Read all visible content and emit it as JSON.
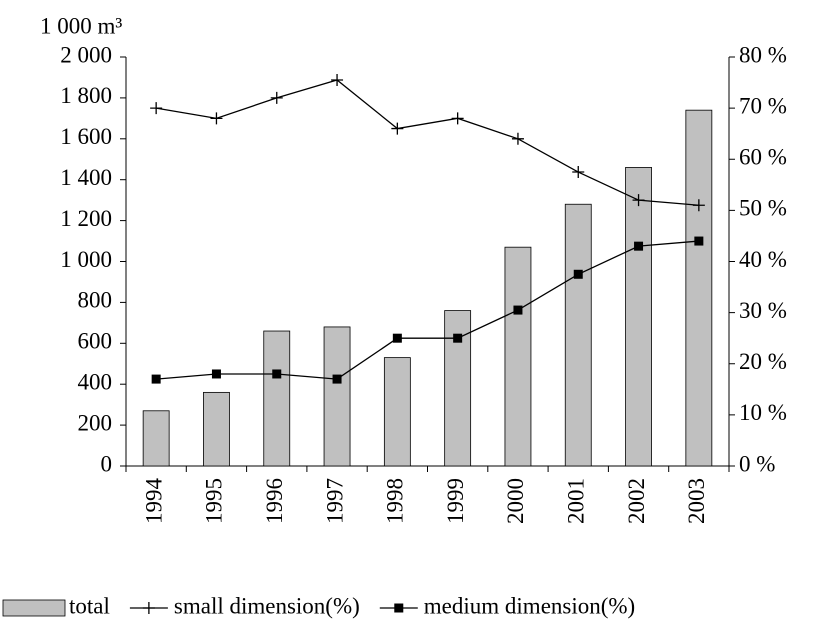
{
  "chart_data": {
    "type": "bar_line",
    "y_label": "1 000 m³",
    "categories": [
      "1994",
      "1995",
      "1996",
      "1997",
      "1998",
      "1999",
      "2000",
      "2001",
      "2002",
      "2003"
    ],
    "series": [
      {
        "name": "total",
        "type": "bar",
        "color": "#c0c0c0",
        "values": [
          270,
          360,
          660,
          680,
          530,
          760,
          1070,
          1280,
          1460,
          1740
        ]
      },
      {
        "name": "small dimension(%)",
        "type": "line",
        "marker": "plus",
        "color": "#000000",
        "axis": "y2",
        "values": [
          70,
          68,
          72,
          75.5,
          66,
          68,
          64,
          57.5,
          52,
          51
        ]
      },
      {
        "name": "medium dimension(%)",
        "type": "line",
        "marker": "square",
        "color": "#000000",
        "axis": "y2",
        "values": [
          17,
          18,
          18,
          17,
          25,
          25,
          30.5,
          37.5,
          43,
          44
        ]
      }
    ],
    "ylim": [
      0,
      2000
    ],
    "yticks": [
      0,
      200,
      400,
      600,
      800,
      {
        "value": 1000,
        "label": "1 000"
      },
      {
        "value": 1200,
        "label": "1 200"
      },
      {
        "value": 1400,
        "label": "1 400"
      },
      {
        "value": 1600,
        "label": "1 600"
      },
      {
        "value": 1800,
        "label": "1 800"
      },
      {
        "value": 2000,
        "label": "2 000"
      }
    ],
    "y2lim": [
      0,
      80
    ],
    "y2ticks": [
      {
        "value": 0,
        "label": "0 %"
      },
      {
        "value": 10,
        "label": "10 %"
      },
      {
        "value": 20,
        "label": "20 %"
      },
      {
        "value": 30,
        "label": "30 %"
      },
      {
        "value": 40,
        "label": "40 %"
      },
      {
        "value": 50,
        "label": "50 %"
      },
      {
        "value": 60,
        "label": "60 %"
      },
      {
        "value": 70,
        "label": "70 %"
      },
      {
        "value": 80,
        "label": "80 %"
      }
    ]
  }
}
